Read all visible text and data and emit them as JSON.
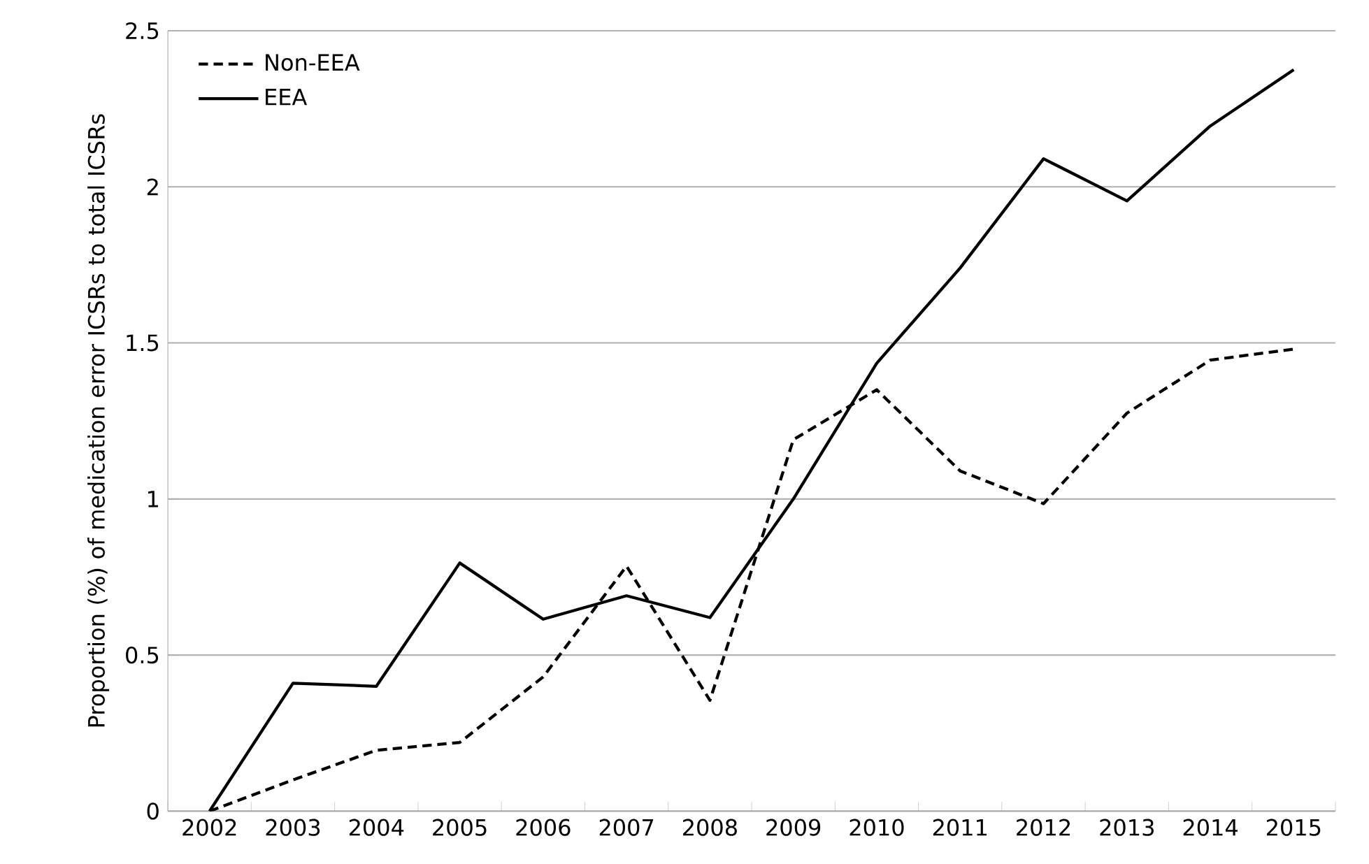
{
  "chart_data": {
    "type": "line",
    "ylabel": "Proportion (%) of medication error ICSRs to total ICSRs",
    "categories": [
      "2002",
      "2003",
      "2004",
      "2005",
      "2006",
      "2007",
      "2008",
      "2009",
      "2010",
      "2011",
      "2012",
      "2013",
      "2014",
      "2015"
    ],
    "series": [
      {
        "name": "Non-EEA",
        "color": "#000000",
        "line_style": "dashed",
        "values": [
          0,
          0.1,
          0.195,
          0.22,
          0.43,
          0.785,
          0.355,
          1.19,
          1.35,
          1.09,
          0.985,
          1.275,
          1.445,
          1.48
        ]
      },
      {
        "name": "EEA",
        "color": "#000000",
        "line_style": "solid",
        "values": [
          0,
          0.41,
          0.4,
          0.795,
          0.615,
          0.69,
          0.62,
          1.0,
          1.435,
          1.74,
          2.09,
          1.955,
          2.195,
          2.375
        ]
      }
    ],
    "ylim": [
      0,
      2.5
    ],
    "yticks": [
      0,
      0.5,
      1,
      1.5,
      2,
      2.5
    ],
    "grid": "y",
    "legend": "top left",
    "marker": "none"
  }
}
